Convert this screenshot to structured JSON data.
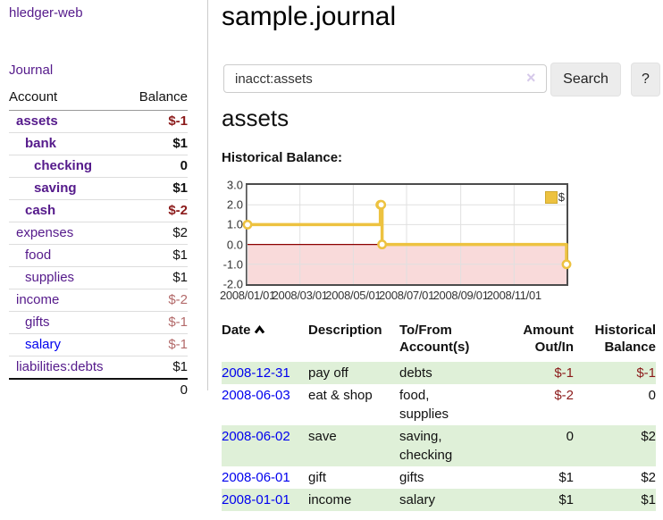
{
  "app": {
    "title": "hledger-web"
  },
  "nav": {
    "journal": "Journal"
  },
  "colors": {
    "link_purple": "#551a8b",
    "link_blue": "#0000ee",
    "text": "#111111",
    "negative_strong": "#8b1a1a",
    "negative_soft": "#b36a6a",
    "row_highlight_green": "#dff0d8",
    "chart_line": "#edc240",
    "chart_negative_fill": "#f9dada",
    "chart_zero_line": "#8b0000",
    "chart_grid": "#e0e0e0"
  },
  "sidebar": {
    "accounts_table": {
      "headers": {
        "account": "Account",
        "balance": "Balance"
      },
      "rows": [
        {
          "label": "assets",
          "indent": 1,
          "bold": true,
          "balance": "$-1",
          "balance_style": "neg",
          "link": "purple"
        },
        {
          "label": "bank",
          "indent": 2,
          "bold": true,
          "balance": "$1",
          "balance_style": "pos",
          "link": "purple"
        },
        {
          "label": "checking",
          "indent": 3,
          "bold": true,
          "balance": "0",
          "balance_style": "pos",
          "link": "purple"
        },
        {
          "label": "saving",
          "indent": 3,
          "bold": true,
          "balance": "$1",
          "balance_style": "pos",
          "link": "purple"
        },
        {
          "label": "cash",
          "indent": 2,
          "bold": true,
          "balance": "$-2",
          "balance_style": "neg",
          "link": "purple"
        },
        {
          "label": "expenses",
          "indent": 1,
          "bold": false,
          "balance": "$2",
          "balance_style": "pos",
          "link": "purple"
        },
        {
          "label": "food",
          "indent": 2,
          "bold": false,
          "balance": "$1",
          "balance_style": "pos",
          "link": "purple"
        },
        {
          "label": "supplies",
          "indent": 2,
          "bold": false,
          "balance": "$1",
          "balance_style": "pos",
          "link": "purple"
        },
        {
          "label": "income",
          "indent": 1,
          "bold": false,
          "balance": "$-2",
          "balance_style": "neg_soft",
          "link": "purple"
        },
        {
          "label": "gifts",
          "indent": 2,
          "bold": false,
          "balance": "$-1",
          "balance_style": "neg_soft",
          "link": "purple"
        },
        {
          "label": "salary",
          "indent": 2,
          "bold": false,
          "balance": "$-1",
          "balance_style": "neg_soft",
          "link": "blue"
        },
        {
          "label": "liabilities:debts",
          "indent": 1,
          "bold": false,
          "balance": "$1",
          "balance_style": "pos",
          "link": "purple"
        }
      ],
      "total": "0"
    }
  },
  "main": {
    "title": "sample.journal",
    "search": {
      "value": "inacct:assets",
      "clear_icon": "×",
      "search_button": "Search",
      "help_button": "?"
    },
    "section_heading": "assets",
    "chart_label": "Historical Balance:"
  },
  "chart_data": {
    "type": "line",
    "steps": true,
    "title": "Historical Balance:",
    "legend": [
      {
        "label": "$",
        "color": "#edc240"
      }
    ],
    "ylim": [
      -2,
      3
    ],
    "y_tick_labels": [
      "3.0",
      "2.0",
      "1.0",
      "0.0",
      "-1.0",
      "-2.0"
    ],
    "x_range_days": [
      0,
      365
    ],
    "x_ticks": [
      {
        "day": 0,
        "label": "2008/01/01"
      },
      {
        "day": 60,
        "label": "2008/03/01"
      },
      {
        "day": 121,
        "label": "2008/05/01"
      },
      {
        "day": 182,
        "label": "2008/07/01"
      },
      {
        "day": 244,
        "label": "2008/09/01"
      },
      {
        "day": 305,
        "label": "2008/11/01"
      }
    ],
    "series": [
      {
        "name": "$",
        "points": [
          {
            "date": "2008-01-01",
            "day": 0,
            "value": 1
          },
          {
            "date": "2008-06-01",
            "day": 152,
            "value": 2
          },
          {
            "date": "2008-06-02",
            "day": 153,
            "value": 2
          },
          {
            "date": "2008-06-03",
            "day": 154,
            "value": 0
          },
          {
            "date": "2008-12-31",
            "day": 365,
            "value": -1
          }
        ]
      }
    ],
    "grid": true,
    "legend_position": "top-right"
  },
  "transactions": {
    "headers": [
      {
        "label": "Date",
        "sorted": "asc"
      },
      {
        "label": "Description"
      },
      {
        "label": "To/From Account(s)"
      },
      {
        "label": "Amount Out/In",
        "align": "right"
      },
      {
        "label": "Historical Balance",
        "align": "right"
      }
    ],
    "rows": [
      {
        "date": "2008-12-31",
        "description": "pay off",
        "accounts": "debts",
        "amount": "$-1",
        "amount_negative": true,
        "balance": "$-1",
        "balance_negative": true,
        "highlight": true
      },
      {
        "date": "2008-06-03",
        "description": "eat & shop",
        "accounts": "food, supplies",
        "amount": "$-2",
        "amount_negative": true,
        "balance": "0",
        "balance_negative": false,
        "highlight": false
      },
      {
        "date": "2008-06-02",
        "description": "save",
        "accounts": "saving, checking",
        "amount": "0",
        "amount_negative": false,
        "balance": "$2",
        "balance_negative": false,
        "highlight": true
      },
      {
        "date": "2008-06-01",
        "description": "gift",
        "accounts": "gifts",
        "amount": "$1",
        "amount_negative": false,
        "balance": "$2",
        "balance_negative": false,
        "highlight": false
      },
      {
        "date": "2008-01-01",
        "description": "income",
        "accounts": "salary",
        "amount": "$1",
        "amount_negative": false,
        "balance": "$1",
        "balance_negative": false,
        "highlight": true
      }
    ]
  }
}
